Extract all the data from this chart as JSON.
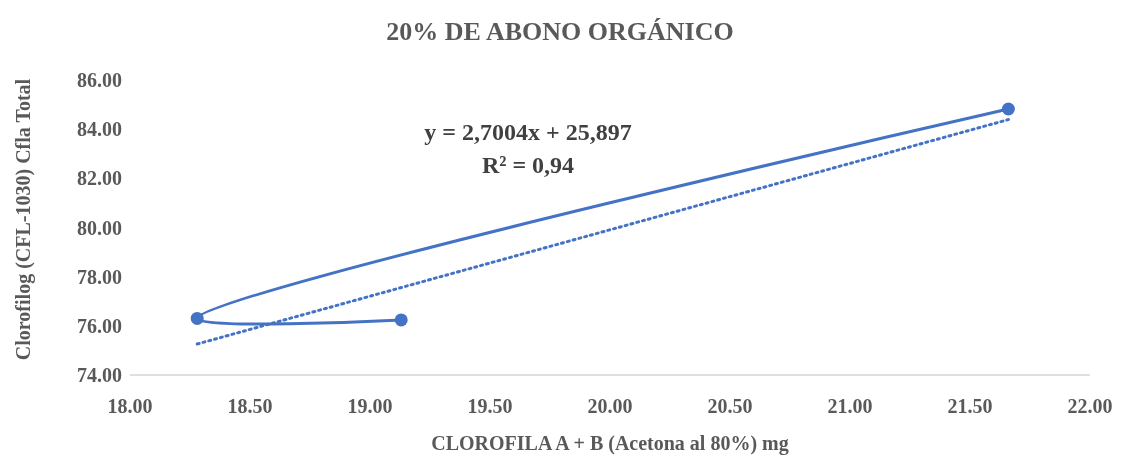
{
  "chart_data": {
    "type": "scatter",
    "title": "20% DE ABONO ORGÁNICO",
    "xlabel": "CLOROFILA A + B (Acetona al 80%) mg",
    "ylabel": "Clorofilog (CFL-1030) Cfla Total",
    "xlim": [
      18,
      22
    ],
    "xticks": [
      {
        "value": 18,
        "label": "18.00"
      },
      {
        "value": 18.5,
        "label": "18.50"
      },
      {
        "value": 19,
        "label": "19.00"
      },
      {
        "value": 19.5,
        "label": "19.50"
      },
      {
        "value": 20,
        "label": "20.00"
      },
      {
        "value": 20.5,
        "label": "20.50"
      },
      {
        "value": 21,
        "label": "21.00"
      },
      {
        "value": 21.5,
        "label": "21.50"
      },
      {
        "value": 22,
        "label": "22.00"
      }
    ],
    "ylim": [
      74,
      86
    ],
    "yticks": [
      {
        "value": 74,
        "label": "74.00"
      },
      {
        "value": 76,
        "label": "76.00"
      },
      {
        "value": 78,
        "label": "78.00"
      },
      {
        "value": 80,
        "label": "80.00"
      },
      {
        "value": 82,
        "label": "82.00"
      },
      {
        "value": 84,
        "label": "84.00"
      },
      {
        "value": 86,
        "label": "86.00"
      }
    ],
    "grid": false,
    "series": [
      {
        "type": "line",
        "color": "#4472c4",
        "marker": "circle",
        "line_style": "solid",
        "x": [
          19.13,
          18.28,
          21.66
        ],
        "values": [
          76.24,
          76.3,
          84.82
        ]
      },
      {
        "type": "line",
        "color": "#4472c4",
        "marker": "none",
        "line_style": "dotted",
        "x": [
          18.28,
          21.66
        ],
        "values": [
          75.26,
          84.39
        ]
      }
    ],
    "annotations": [
      "y = 2,7004x + 25,897",
      "R² = 0,94"
    ]
  }
}
